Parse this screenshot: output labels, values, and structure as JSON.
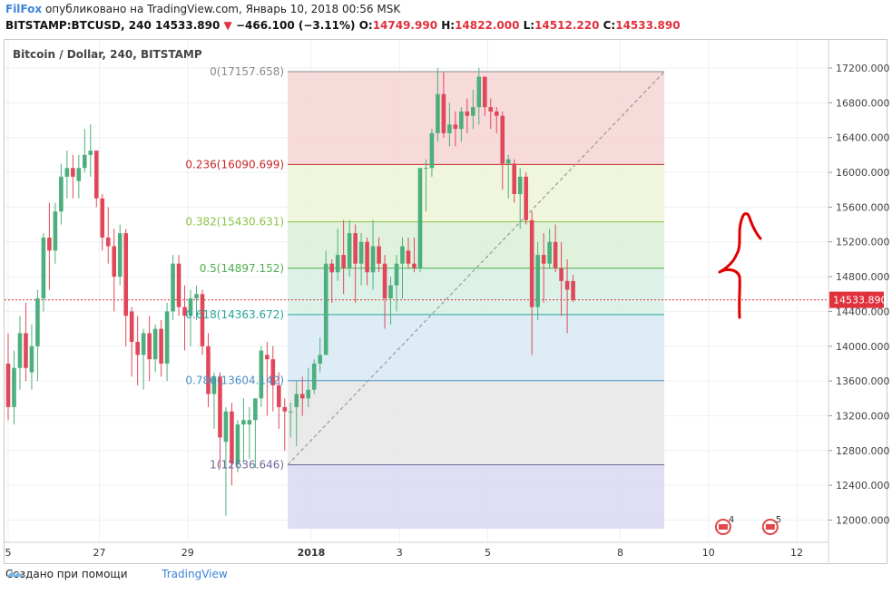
{
  "header": {
    "author": "FilFox",
    "published_text": "опубликовано на TradingView.com, Январь 10, 2018 00:56 MSK",
    "symbol": "BITSTAMP:BTCUSD, 240",
    "last": "14533.890",
    "change": "−466.100 (−3.11%)",
    "ohlc_o_label": "O:",
    "ohlc_o": "14749.990",
    "ohlc_h_label": "H:",
    "ohlc_h": "14822.000",
    "ohlc_l_label": "L:",
    "ohlc_l": "14512.220",
    "ohlc_c_label": "C:",
    "ohlc_c": "14533.890"
  },
  "legend": {
    "title": "Bitcoin / Dollar, 240, BITSTAMP"
  },
  "footer": {
    "created_with": "Создано при помощи",
    "brand": "TradingView"
  },
  "colors": {
    "up": "#4caf7d",
    "down": "#e0485a",
    "fib_line_0236": "#c62828",
    "fib_line_05": "#4caf50",
    "fib_line_0786": "#4a90c8",
    "price_line": "#e0313c",
    "drawing": "#e00000"
  },
  "chart_data": {
    "type": "candlestick",
    "title": "Bitcoin / Dollar, 240, BITSTAMP",
    "y_axis": {
      "ylim": [
        11850,
        17300
      ],
      "ticks": [
        "17200.000",
        "16800.000",
        "16400.000",
        "16000.000",
        "15600.000",
        "15200.000",
        "14800.000",
        "14400.000",
        "14000.000",
        "13600.000",
        "13200.000",
        "12800.000",
        "12400.000",
        "12000.000"
      ],
      "tick_values": [
        17200,
        16800,
        16400,
        16000,
        15600,
        15200,
        14800,
        14400,
        14000,
        13600,
        13200,
        12800,
        12400,
        12000
      ]
    },
    "x_axis": {
      "ticks": [
        {
          "label": "5",
          "bar": 0
        },
        {
          "label": "27",
          "bar": 15.5
        },
        {
          "label": "29",
          "bar": 30.5
        },
        {
          "label": "2018",
          "bar": 51.5
        },
        {
          "label": "3",
          "bar": 66.5
        },
        {
          "label": "5",
          "bar": 81.5
        },
        {
          "label": "8",
          "bar": 104
        },
        {
          "label": "10",
          "bar": 119
        },
        {
          "label": "12",
          "bar": 134
        }
      ]
    },
    "current_price": {
      "value": 14533.89,
      "label": "14533.890"
    },
    "fibonacci": {
      "x_start_bar": 47.5,
      "x_end_bar": 111.5,
      "levels": [
        {
          "ratio": "0",
          "price": 17157.658,
          "label": "0(17157.658)",
          "color": "#8a8a8a",
          "fill": "#f6d4d4"
        },
        {
          "ratio": "0.236",
          "price": 16090.699,
          "label": "0.236(16090.699)",
          "color": "#c62828",
          "fill": "#ecf4d6"
        },
        {
          "ratio": "0.382",
          "price": 15430.631,
          "label": "0.382(15430.631)",
          "color": "#8bc34a",
          "fill": "#dbf0d6"
        },
        {
          "ratio": "0.5",
          "price": 14897.152,
          "label": "0.5(14897.152)",
          "color": "#4caf50",
          "fill": "#d6f0e4"
        },
        {
          "ratio": "0.618",
          "price": 14363.672,
          "label": "0.618(14363.672)",
          "color": "#26a69a",
          "fill": "#d8e9f3"
        },
        {
          "ratio": "0.786",
          "price": 13604.142,
          "label": "0.786(13604.142)",
          "color": "#4a90c8",
          "fill": "#e6e6e6"
        },
        {
          "ratio": "1",
          "price": 12636.646,
          "label": "1(12636.646)",
          "color": "#6b6b9b",
          "fill": "#d9d8f3"
        }
      ],
      "bottom_price": 11900
    },
    "trendline": {
      "from_bar": 47.5,
      "from_price": 12636.646,
      "to_bar": 111.5,
      "to_price": 17157.658
    },
    "event_badges": [
      {
        "label": "4",
        "bar": 121.5
      },
      {
        "label": "5",
        "bar": 129.5
      }
    ],
    "candles": [
      [
        13800,
        14150,
        13150,
        13300
      ],
      [
        13300,
        13950,
        13100,
        13750
      ],
      [
        13750,
        14350,
        13500,
        14150
      ],
      [
        14150,
        14500,
        13600,
        13750
      ],
      [
        13700,
        14250,
        13500,
        14000
      ],
      [
        14000,
        14650,
        13600,
        14550
      ],
      [
        14550,
        15300,
        14400,
        15250
      ],
      [
        15250,
        15650,
        14650,
        15100
      ],
      [
        15100,
        15650,
        14950,
        15550
      ],
      [
        15550,
        16100,
        15400,
        15950
      ],
      [
        15950,
        16250,
        15700,
        16050
      ],
      [
        16050,
        16200,
        15700,
        15950
      ],
      [
        15900,
        16200,
        15700,
        16050
      ],
      [
        16050,
        16500,
        16000,
        16200
      ],
      [
        16200,
        16550,
        15950,
        16250
      ],
      [
        16250,
        16250,
        15600,
        15700
      ],
      [
        15700,
        15750,
        15100,
        15250
      ],
      [
        15250,
        15600,
        14950,
        15150
      ],
      [
        15150,
        15350,
        14400,
        14800
      ],
      [
        14800,
        15400,
        14700,
        15300
      ],
      [
        15300,
        15350,
        14000,
        14350
      ],
      [
        14400,
        14450,
        13650,
        14050
      ],
      [
        14050,
        14350,
        13550,
        13900
      ],
      [
        13900,
        14200,
        13500,
        14150
      ],
      [
        14150,
        14350,
        13600,
        13850
      ],
      [
        13850,
        14250,
        13700,
        14200
      ],
      [
        14200,
        14300,
        13650,
        13800
      ],
      [
        13800,
        14500,
        13600,
        14400
      ],
      [
        14400,
        15050,
        14300,
        14950
      ],
      [
        14950,
        15050,
        14350,
        14450
      ],
      [
        14450,
        14700,
        13950,
        14350
      ],
      [
        14350,
        14650,
        14000,
        14550
      ],
      [
        14550,
        14700,
        14300,
        14600
      ],
      [
        14600,
        14650,
        13900,
        14000
      ],
      [
        14000,
        14150,
        13300,
        13450
      ],
      [
        13450,
        13700,
        13050,
        13650
      ],
      [
        13650,
        13700,
        12600,
        12950
      ],
      [
        12900,
        13300,
        12050,
        13250
      ],
      [
        13250,
        13350,
        12400,
        12650
      ],
      [
        12650,
        13150,
        12550,
        13100
      ],
      [
        13100,
        13400,
        12650,
        13150
      ],
      [
        13100,
        13300,
        12700,
        13150
      ],
      [
        13150,
        13400,
        12600,
        13400
      ],
      [
        13400,
        14000,
        13300,
        13950
      ],
      [
        13900,
        14050,
        13200,
        13850
      ],
      [
        13850,
        14000,
        13250,
        13550
      ],
      [
        13550,
        13700,
        13050,
        13300
      ],
      [
        13300,
        13400,
        12800,
        13250
      ],
      [
        13250,
        13350,
        12950,
        13250
      ],
      [
        13300,
        13600,
        12850,
        13450
      ],
      [
        13450,
        13650,
        13200,
        13400
      ],
      [
        13400,
        13750,
        13300,
        13500
      ],
      [
        13500,
        13850,
        13450,
        13800
      ],
      [
        13800,
        14100,
        13700,
        13900
      ],
      [
        13900,
        15100,
        13900,
        14950
      ],
      [
        14950,
        15000,
        14500,
        14850
      ],
      [
        14850,
        15350,
        14750,
        15050
      ],
      [
        15050,
        15450,
        14600,
        14900
      ],
      [
        14900,
        15450,
        14800,
        15300
      ],
      [
        15300,
        15400,
        14500,
        14950
      ],
      [
        14950,
        15300,
        14700,
        15200
      ],
      [
        15200,
        15250,
        14700,
        14850
      ],
      [
        14850,
        15450,
        14650,
        15150
      ],
      [
        15150,
        15250,
        14850,
        14950
      ],
      [
        14950,
        15050,
        14200,
        14550
      ],
      [
        14550,
        14800,
        14250,
        14700
      ],
      [
        14700,
        15050,
        14400,
        14950
      ],
      [
        14950,
        15250,
        14550,
        15150
      ],
      [
        15100,
        15250,
        14900,
        14950
      ],
      [
        14950,
        15250,
        14850,
        14900
      ],
      [
        14900,
        16000,
        14850,
        16050
      ],
      [
        16050,
        16150,
        15550,
        16050
      ],
      [
        16050,
        16500,
        15950,
        16450
      ],
      [
        16450,
        17200,
        16350,
        16900
      ],
      [
        16900,
        17150,
        16400,
        16450
      ],
      [
        16450,
        16800,
        16300,
        16550
      ],
      [
        16550,
        16700,
        16300,
        16500
      ],
      [
        16500,
        16750,
        16350,
        16700
      ],
      [
        16700,
        16850,
        16450,
        16650
      ],
      [
        16650,
        16950,
        16500,
        16750
      ],
      [
        16750,
        17200,
        16550,
        17100
      ],
      [
        17100,
        17050,
        16650,
        16750
      ],
      [
        16750,
        16850,
        16500,
        16700
      ],
      [
        16700,
        16750,
        16450,
        16650
      ],
      [
        16650,
        16700,
        15800,
        16100
      ],
      [
        16100,
        16200,
        15700,
        16150
      ],
      [
        16100,
        16150,
        15650,
        15750
      ],
      [
        15750,
        16050,
        15350,
        15950
      ],
      [
        15950,
        16000,
        15400,
        15450
      ],
      [
        15450,
        15550,
        13900,
        14450
      ],
      [
        14450,
        15200,
        14300,
        15050
      ],
      [
        15050,
        15300,
        14500,
        14950
      ],
      [
        14950,
        15350,
        14900,
        15200
      ],
      [
        15200,
        15400,
        14850,
        14900
      ],
      [
        14900,
        15200,
        14350,
        14750
      ],
      [
        14750,
        15000,
        14150,
        14650
      ],
      [
        14750,
        14820,
        14510,
        14530
      ]
    ]
  }
}
